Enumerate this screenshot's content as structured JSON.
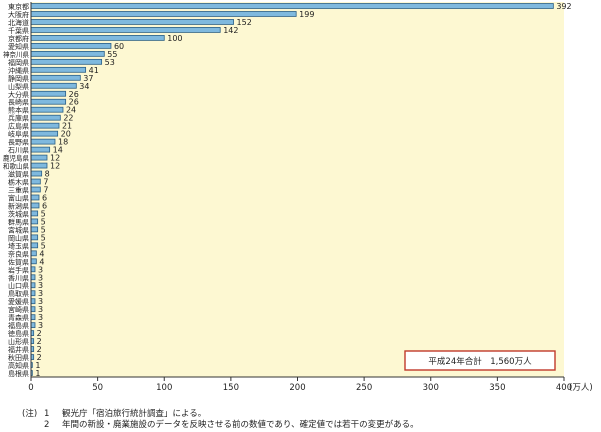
{
  "chart_data": {
    "type": "bar",
    "orientation": "horizontal",
    "categories": [
      "東京都",
      "大阪府",
      "北海道",
      "千葉県",
      "京都府",
      "愛知県",
      "神奈川県",
      "福岡県",
      "沖縄県",
      "静岡県",
      "山梨県",
      "大分県",
      "長崎県",
      "熊本県",
      "兵庫県",
      "広島県",
      "岐阜県",
      "長野県",
      "石川県",
      "鹿児島県",
      "和歌山県",
      "滋賀県",
      "栃木県",
      "三重県",
      "富山県",
      "新潟県",
      "茨城県",
      "群馬県",
      "宮城県",
      "岡山県",
      "埼玉県",
      "奈良県",
      "佐賀県",
      "岩手県",
      "香川県",
      "山口県",
      "鳥取県",
      "愛媛県",
      "宮崎県",
      "青森県",
      "福島県",
      "徳島県",
      "山形県",
      "福井県",
      "秋田県",
      "高知県",
      "島根県"
    ],
    "values": [
      392,
      199,
      152,
      142,
      100,
      60,
      55,
      53,
      41,
      37,
      34,
      26,
      26,
      24,
      22,
      21,
      20,
      18,
      14,
      12,
      12,
      8,
      7,
      7,
      6,
      6,
      5,
      5,
      5,
      5,
      5,
      4,
      4,
      3,
      3,
      3,
      3,
      3,
      3,
      3,
      3,
      2,
      2,
      2,
      2,
      1,
      1
    ],
    "xlim": [
      0,
      400
    ],
    "x_ticks": [
      "0",
      "50",
      "100",
      "150",
      "200",
      "250",
      "300",
      "350",
      "400"
    ],
    "x_unit": "(万人)",
    "grid": false,
    "annotation": "平成24年合計　1,560万人",
    "colors": {
      "plot_bg": "#fdf8d2",
      "bar": "#7fb9de",
      "bar_edge": "#2a5f86",
      "annotation_border": "#c0392b"
    }
  },
  "notes": {
    "prefix": "(注)",
    "items": [
      {
        "num": "1",
        "text": "観光庁「宿泊旅行統計調査」による。"
      },
      {
        "num": "2",
        "text": "年間の新設・廃業施設のデータを反映させる前の数値であり、確定値では若干の変更がある。"
      }
    ]
  }
}
